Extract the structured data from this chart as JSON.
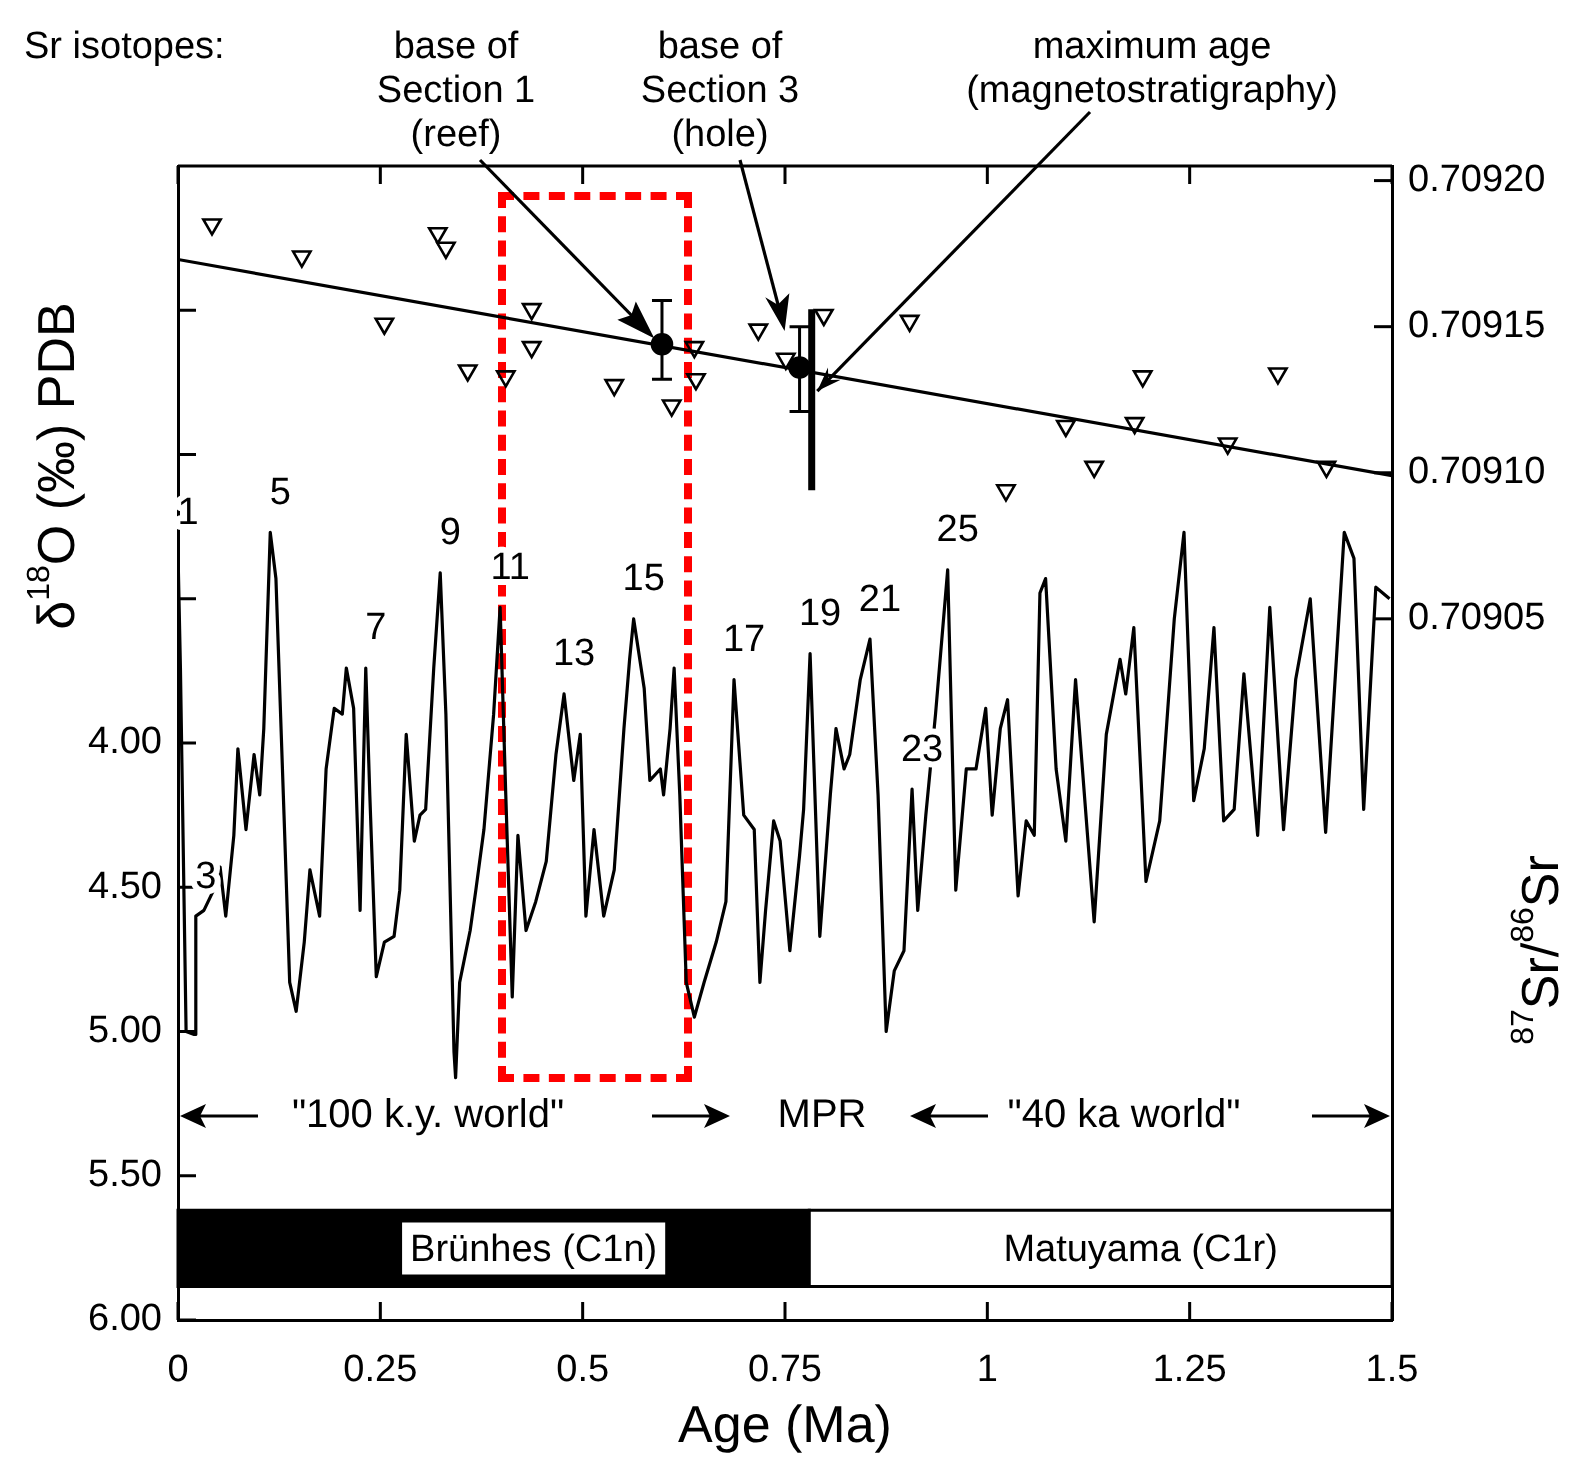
{
  "chart_data": {
    "type": "line",
    "xlabel": "Age (Ma)",
    "ylabel": "δ$^{18}$O (‰) PDB",
    "y2label": "$^{87}$Sr/$^{86}$Sr",
    "xlim": [
      0,
      1.5
    ],
    "xticks": [
      0,
      0.25,
      0.5,
      0.75,
      1,
      1.25,
      1.5
    ],
    "ylim": [
      6,
      2
    ],
    "yticks": [
      {
        "value": 2.5,
        "label": null
      },
      {
        "value": 3,
        "label": null
      },
      {
        "value": 3.5,
        "label": null
      },
      {
        "value": 4,
        "label": "4.00"
      },
      {
        "value": 4.5,
        "label": "4.50"
      },
      {
        "value": 5,
        "label": "5.00"
      },
      {
        "value": 5.5,
        "label": "5.50"
      },
      {
        "value": 6,
        "label": "6.00"
      }
    ],
    "y2lim": [
      0.70881,
      0.709205
    ],
    "y2ticks": [
      {
        "value": 0.70905,
        "label": "0.70905"
      },
      {
        "value": 0.7091,
        "label": "0.70910"
      },
      {
        "value": 0.70915,
        "label": "0.70915"
      },
      {
        "value": 0.7092,
        "label": "0.70920"
      }
    ],
    "series": [
      {
        "type": "line",
        "color": "#000000",
        "marker": "none",
        "x": [
          0,
          0.003,
          0.01,
          0.02,
          0.022,
          0.032,
          0.044,
          0.052,
          0.059,
          0.069,
          0.074,
          0.084,
          0.094,
          0.101,
          0.106,
          0.114,
          0.121,
          0.131,
          0.138,
          0.146,
          0.156,
          0.163,
          0.175,
          0.183,
          0.193,
          0.203,
          0.208,
          0.217,
          0.225,
          0.232,
          0.237,
          0.245,
          0.255,
          0.267,
          0.274,
          0.282,
          0.292,
          0.299,
          0.306,
          0.316,
          0.324,
          0.331,
          0.341,
          0.343,
          0.348,
          0.361,
          0.368,
          0.378,
          0.39,
          0.398,
          0.405,
          0.413,
          0.42,
          0.43,
          0.442,
          0.455,
          0.467,
          0.477,
          0.489,
          0.497,
          0.504,
          0.514,
          0.526,
          0.539,
          0.551,
          0.558,
          0.563,
          0.576,
          0.583,
          0.596,
          0.6,
          0.608,
          0.613,
          0.62,
          0.628,
          0.638,
          0.65,
          0.665,
          0.677,
          0.687,
          0.699,
          0.712,
          0.719,
          0.726,
          0.736,
          0.744,
          0.756,
          0.768,
          0.773,
          0.781,
          0.793,
          0.806,
          0.813,
          0.823,
          0.83,
          0.843,
          0.855,
          0.865,
          0.875,
          0.885,
          0.897,
          0.907,
          0.914,
          0.924,
          0.936,
          0.951,
          0.961,
          0.974,
          0.986,
          0.998,
          1.006,
          1.016,
          1.025,
          1.038,
          1.048,
          1.058,
          1.065,
          1.072,
          1.085,
          1.097,
          1.109,
          1.132,
          1.147,
          1.164,
          1.171,
          1.181,
          1.196,
          1.213,
          1.231,
          1.243,
          1.255,
          1.268,
          1.28,
          1.292,
          1.305,
          1.317,
          1.334,
          1.349,
          1.366,
          1.381,
          1.399,
          1.418,
          1.441,
          1.453,
          1.465,
          1.48,
          1.497
        ],
        "values": [
          3.34,
          3.74,
          5.0,
          5.01,
          4.6,
          4.58,
          4.51,
          4.43,
          4.6,
          4.32,
          4.02,
          4.3,
          4.04,
          4.18,
          3.95,
          3.27,
          3.43,
          4.25,
          4.83,
          4.93,
          4.69,
          4.44,
          4.6,
          4.09,
          3.88,
          3.9,
          3.74,
          3.88,
          4.58,
          3.74,
          4.18,
          4.81,
          4.69,
          4.67,
          4.51,
          3.97,
          4.34,
          4.25,
          4.23,
          3.74,
          3.41,
          3.9,
          5.07,
          5.16,
          4.83,
          4.65,
          4.51,
          4.3,
          3.9,
          3.53,
          4.18,
          4.88,
          4.32,
          4.65,
          4.55,
          4.41,
          4.04,
          3.83,
          4.13,
          3.97,
          4.6,
          4.3,
          4.6,
          4.44,
          3.95,
          3.71,
          3.57,
          3.81,
          4.13,
          4.09,
          4.18,
          3.95,
          3.74,
          4.18,
          4.83,
          4.95,
          4.83,
          4.69,
          4.55,
          3.78,
          4.25,
          4.3,
          4.83,
          4.58,
          4.27,
          4.34,
          4.72,
          4.39,
          4.23,
          3.69,
          4.67,
          4.18,
          3.95,
          4.09,
          4.04,
          3.78,
          3.64,
          4.18,
          5.0,
          4.79,
          4.72,
          4.16,
          4.58,
          4.25,
          3.9,
          3.4,
          4.51,
          4.09,
          4.09,
          3.88,
          4.25,
          3.95,
          3.85,
          4.53,
          4.27,
          4.32,
          3.48,
          3.43,
          4.09,
          4.34,
          3.78,
          4.62,
          3.97,
          3.71,
          3.83,
          3.6,
          4.48,
          4.27,
          3.57,
          3.27,
          4.2,
          4.02,
          3.6,
          4.27,
          4.23,
          3.76,
          4.32,
          3.53,
          4.3,
          3.78,
          3.5,
          4.31,
          3.27,
          3.36,
          4.23,
          3.46,
          3.5
        ]
      },
      {
        "type": "scatter",
        "axis": "y2",
        "color": "#000000",
        "marker": "triangle",
        "x": [
          0.042,
          0.153,
          0.255,
          0.321,
          0.331,
          0.358,
          0.405,
          0.437,
          0.437,
          0.539,
          0.61,
          0.638,
          0.64,
          0.717,
          0.751,
          0.798,
          0.904,
          1.023,
          1.097,
          1.132,
          1.182,
          1.192,
          1.297,
          1.359,
          1.419
        ],
        "values": [
          0.709185,
          0.709174,
          0.709151,
          0.709182,
          0.709177,
          0.709135,
          0.709133,
          0.709156,
          0.709143,
          0.70913,
          0.709123,
          0.709143,
          0.709132,
          0.709149,
          0.709139,
          0.709154,
          0.709152,
          0.709094,
          0.709116,
          0.709102,
          0.709117,
          0.709133,
          0.70911,
          0.709134,
          0.709102
        ]
      },
      {
        "type": "line",
        "axis": "y2",
        "color": "#000000",
        "marker": "none",
        "x": [
          0,
          1.5
        ],
        "values": [
          0.709173,
          0.709099
        ]
      },
      {
        "type": "scatter",
        "axis": "y2",
        "color": "#000000",
        "marker": "circle",
        "x": [
          0.598,
          0.768
        ],
        "values": [
          0.709144,
          0.709136
        ],
        "errors": [
          [
            0.709132,
            0.709159
          ],
          [
            0.709121,
            0.70915
          ]
        ]
      },
      {
        "type": "line",
        "axis": "y2",
        "color": "#000000",
        "marker": "none",
        "x": [
          0.783,
          0.783
        ],
        "values": [
          0.709094,
          0.709156
        ]
      }
    ],
    "bands": [
      {
        "axis": "x",
        "from": 0,
        "to": 0.78,
        "label": "Brünhes (C1n)",
        "color": "#000000"
      },
      {
        "axis": "x",
        "from": 0.78,
        "to": 1.5,
        "label": "Matuyama (C1r)",
        "color": "#ffffff"
      }
    ],
    "annotations": [
      "Sr isotopes:",
      "base of\nSection 1\n(reef)",
      "base of\nSection 3\n(hole)",
      {
        "text": "maximum age\n(magnetostratigraphy)",
        "x": 0.783,
        "y": 2.8
      },
      {
        "text": "1",
        "x": 0,
        "y": 3.34
      },
      {
        "text": "3",
        "x": 0.022,
        "y": 4.6
      },
      {
        "text": "5",
        "x": 0.114,
        "y": 3.27
      },
      {
        "text": "7",
        "x": 0.232,
        "y": 3.74
      },
      {
        "text": "9",
        "x": 0.324,
        "y": 3.41
      },
      {
        "text": "11",
        "x": 0.398,
        "y": 3.53
      },
      {
        "text": "13",
        "x": 0.477,
        "y": 3.83
      },
      {
        "text": "15",
        "x": 0.563,
        "y": 3.57
      },
      {
        "text": "17",
        "x": 0.687,
        "y": 3.78
      },
      {
        "text": "19",
        "x": 0.781,
        "y": 3.69
      },
      {
        "text": "21",
        "x": 0.855,
        "y": 3.64
      },
      {
        "text": "23",
        "x": 0.907,
        "y": 4.16
      },
      {
        "text": "25",
        "x": 0.951,
        "y": 3.4
      },
      "\"100 k.y. world\"",
      "MPR",
      "\"40 ka world\""
    ]
  }
}
